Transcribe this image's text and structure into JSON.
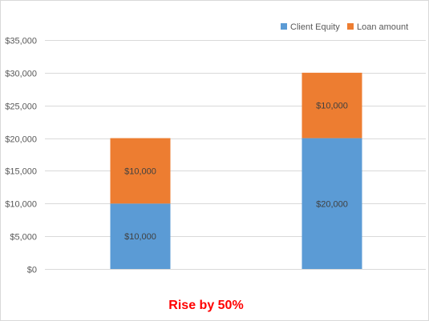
{
  "chart_data": {
    "type": "bar",
    "stacked": true,
    "categories": [
      "",
      ""
    ],
    "series": [
      {
        "name": "Client Equity",
        "values": [
          10000,
          20000
        ],
        "data_labels": [
          "$10,000",
          "$20,000"
        ],
        "color": "#5b9bd5"
      },
      {
        "name": "Loan amount",
        "values": [
          10000,
          10000
        ],
        "data_labels": [
          "$10,000",
          "$10,000"
        ],
        "color": "#ed7d31"
      }
    ],
    "ylim": [
      0,
      35000
    ],
    "yticks": [
      0,
      5000,
      10000,
      15000,
      20000,
      25000,
      30000,
      35000
    ],
    "ytick_labels": [
      "$0",
      "$5,000",
      "$10,000",
      "$15,000",
      "$20,000",
      "$25,000",
      "$30,000",
      "$35,000"
    ],
    "grid": true,
    "grid_color": "#d9d9d9",
    "legend_position": "top-right",
    "annotation": "Rise by 50%",
    "annotation_color": "#ff0000"
  }
}
